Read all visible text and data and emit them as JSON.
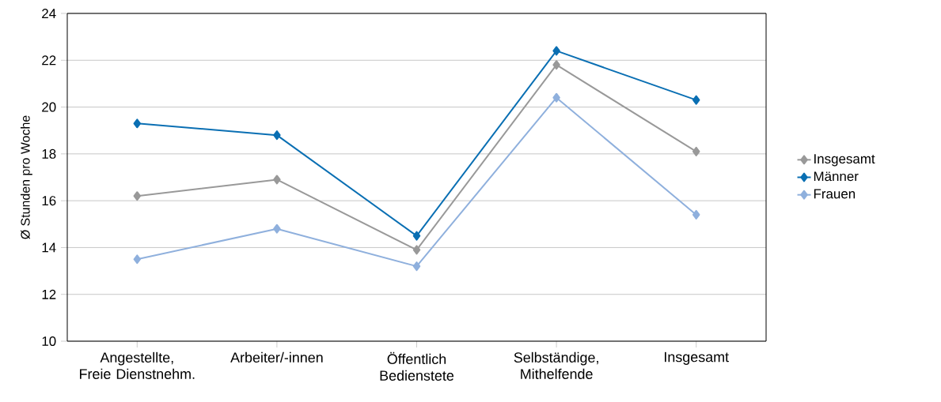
{
  "chart_data": {
    "type": "line",
    "ylabel": "Ø Stunden pro Woche",
    "categories": [
      "Angestellte,\nFreie Dienstnehm.",
      "Arbeiter/-innen",
      "Öffentlich\nBedienstete",
      "Selbständige,\nMithelfende",
      "Insgesamt"
    ],
    "series": [
      {
        "name": "Insgesamt",
        "color": "#999999",
        "values": [
          16.2,
          16.9,
          13.9,
          21.8,
          18.1
        ]
      },
      {
        "name": "Männer",
        "color": "#0a6fb3",
        "values": [
          19.3,
          18.8,
          14.5,
          22.4,
          20.3
        ]
      },
      {
        "name": "Frauen",
        "color": "#8fb0dd",
        "values": [
          13.5,
          14.8,
          13.2,
          20.4,
          15.4
        ]
      }
    ],
    "ylim": [
      10,
      24
    ],
    "yticks": [
      10,
      12,
      14,
      16,
      18,
      20,
      22,
      24
    ],
    "grid": "y",
    "legend": "right",
    "marker": "diamond",
    "line_style": "solid"
  }
}
